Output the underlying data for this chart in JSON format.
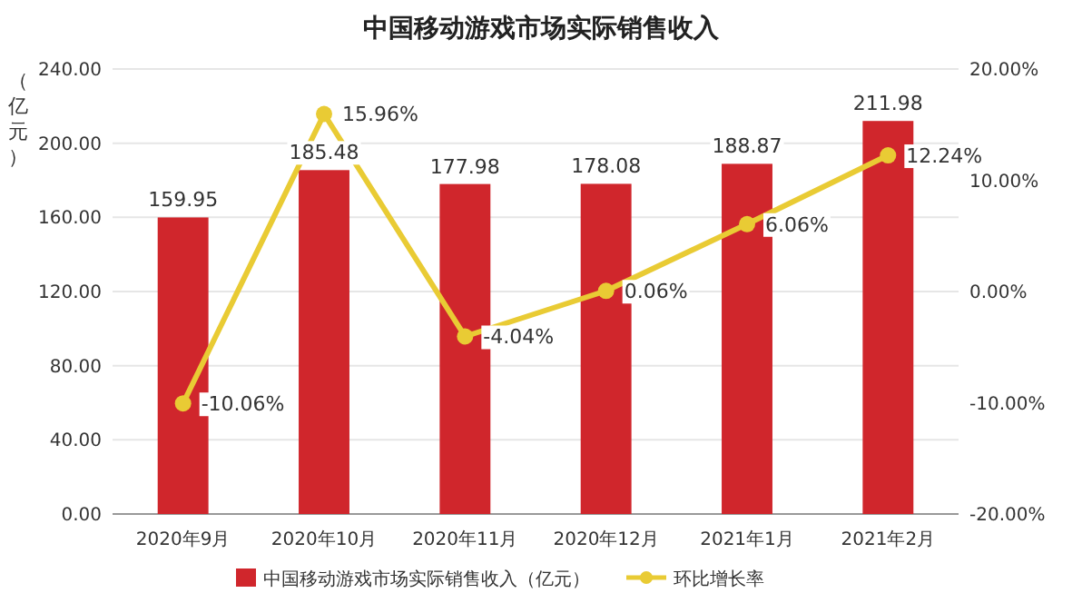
{
  "chart_data": {
    "type": "bar",
    "title": "中国移动游戏市场实际销售收入",
    "ylabel": "（亿元）",
    "categories": [
      "2020年9月",
      "2020年10月",
      "2020年11月",
      "2020年12月",
      "2021年1月",
      "2021年2月"
    ],
    "series": [
      {
        "name": "中国移动游戏市场实际销售收入（亿元）",
        "color": "#d0262c",
        "values": [
          159.95,
          185.48,
          177.98,
          178.08,
          188.87,
          211.98
        ]
      },
      {
        "name": "环比增长率",
        "type": "line",
        "axis": "y2",
        "color": "#e9cb34",
        "marker": "circle",
        "values": [
          -10.06,
          15.96,
          -4.04,
          0.06,
          6.06,
          12.24
        ],
        "value_labels": [
          "-10.06%",
          "15.96%",
          "-4.04%",
          "0.06%",
          "6.06%",
          "12.24%"
        ]
      }
    ],
    "data_labels": true,
    "ylim": [
      0,
      240
    ],
    "yticks": [
      {
        "value": 0,
        "label": "0.00"
      },
      {
        "value": 40,
        "label": "40.00"
      },
      {
        "value": 80,
        "label": "80.00"
      },
      {
        "value": 120,
        "label": "120.00"
      },
      {
        "value": 160,
        "label": "160.00"
      },
      {
        "value": 200,
        "label": "200.00"
      },
      {
        "value": 240,
        "label": "240.00"
      }
    ],
    "y2lim": [
      -20,
      20
    ],
    "y2ticks": [
      {
        "value": -20,
        "label": "-20.00%"
      },
      {
        "value": -10,
        "label": "-10.00%"
      },
      {
        "value": 0,
        "label": "0.00%"
      },
      {
        "value": 10,
        "label": "10.00%"
      },
      {
        "value": 20,
        "label": "20.00%"
      }
    ],
    "grid": "y",
    "legend": "bottom"
  }
}
